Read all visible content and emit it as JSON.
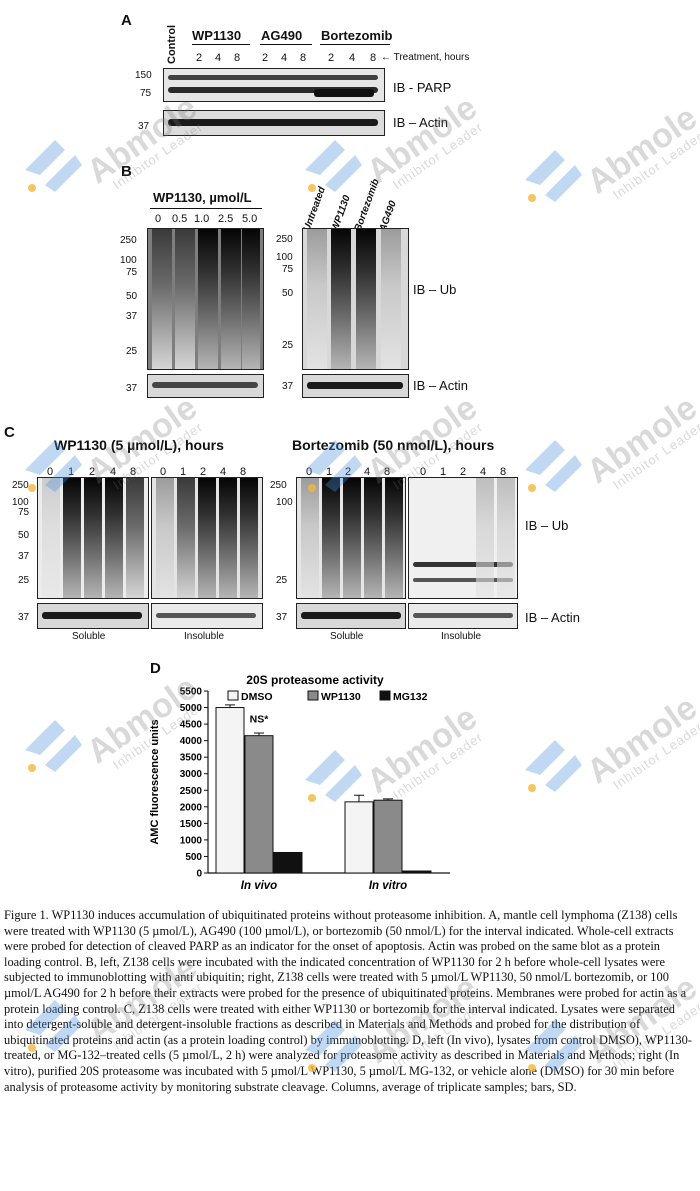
{
  "panelA": {
    "letter": "A",
    "control": "Control",
    "groups": [
      "WP1130",
      "AG490",
      "Bortezomib"
    ],
    "timepoints": [
      "2",
      "4",
      "8",
      "2",
      "4",
      "8",
      "2",
      "4",
      "8"
    ],
    "treatment_label": "← Treatment, hours",
    "markers": [
      "150",
      "75",
      "37"
    ],
    "labels": [
      "IB - PARP",
      "IB – Actin"
    ]
  },
  "panelB": {
    "letter": "B",
    "left_title": "WP1130, µmol/L",
    "concentrations": [
      "0",
      "0.5",
      "1.0",
      "2.5",
      "5.0"
    ],
    "left_markers": [
      "250",
      "100",
      "75",
      "50",
      "37",
      "25",
      "37"
    ],
    "right_lanes": [
      "Untreated",
      "WP1130",
      "Bortezomib",
      "AG490"
    ],
    "right_markers": [
      "250",
      "100",
      "75",
      "50",
      "25",
      "37"
    ],
    "labels": [
      "IB – Ub",
      "IB – Actin"
    ]
  },
  "panelC": {
    "letter": "C",
    "left_title": "WP1130 (5 µmol/L), hours",
    "right_title": "Bortezomib (50 nmol/L), hours",
    "timepoints": [
      "0",
      "1",
      "2",
      "4",
      "8"
    ],
    "markers": [
      "250",
      "100",
      "75",
      "50",
      "37",
      "25",
      "37"
    ],
    "fractions": [
      "Soluble",
      "Insoluble",
      "Soluble",
      "Insoluble"
    ],
    "labels": [
      "IB – Ub",
      "IB – Actin"
    ]
  },
  "panelD": {
    "letter": "D",
    "annotation": "NS*"
  },
  "chart_data": {
    "type": "bar",
    "title": "20S proteasome activity",
    "ylabel": "AMC fluorescence units",
    "xlabel": "",
    "categories": [
      "In vivo",
      "In vitro"
    ],
    "ylim": [
      0,
      5500
    ],
    "yticks": [
      "0",
      "500",
      "1000",
      "1500",
      "2000",
      "2500",
      "3000",
      "3500",
      "4000",
      "4500",
      "5000",
      "5500"
    ],
    "legend_position": "top",
    "series": [
      {
        "name": "DMSO",
        "color": "#f4f4f4",
        "values": [
          5000,
          2150
        ],
        "errors": [
          80,
          200
        ]
      },
      {
        "name": "WP1130",
        "color": "#8a8a8a",
        "values": [
          4150,
          2200
        ],
        "errors": [
          80,
          40
        ]
      },
      {
        "name": "MG132",
        "color": "#111111",
        "values": [
          620,
          60
        ],
        "errors": [
          0,
          0
        ]
      }
    ]
  },
  "caption": "Figure 1. WP1130 induces accumulation of ubiquitinated proteins without proteasome inhibition. A, mantle cell lymphoma (Z138) cells were treated with WP1130 (5 µmol/L), AG490 (100 µmol/L), or bortezomib (50 nmol/L) for the interval indicated. Whole-cell extracts were probed for detection of cleaved PARP as an indicator for the onset of apoptosis. Actin was probed on the same blot as a protein loading control. B, left, Z138 cells were incubated with the indicated concentration of WP1130 for 2 h before whole-cell lysates were subjected to immunoblotting with anti ubiquitin; right, Z138 cells were treated with 5 µmol/L WP1130, 50 nmol/L bortezomib, or 100 µmol/L AG490 for 2 h before their extracts were probed for the presence of ubiquitinated proteins. Membranes were probed for actin as a protein loading control. C, Z138 cells were treated with either WP1130 or bortezomib for the interval indicated. Lysates were separated into detergent-soluble and detergent-insoluble fractions as described in Materials and Methods and probed for the distribution of ubiquitinated proteins and actin (as a protein loading control) by immunoblotting. D, left (In vivo), lysates from control DMSO), WP1130-treated, or MG-132–treated cells (5 µmol/L, 2 h) were analyzed for proteasome activity as described in Materials and Methods; right (In vitro), purified 20S proteasome was incubated with 5 µmol/L WP1130, 5 µmol/L MG-132, or vehicle alone (DMSO) for 30 min before analysis of proteasome activity by monitoring substrate cleavage. Columns, average of triplicate samples; bars, SD.",
  "watermark": {
    "brand": "Abmole",
    "tagline": "Inhibitor Leader",
    "color": "#4a90d9",
    "dot_color": "#f2b63c"
  }
}
